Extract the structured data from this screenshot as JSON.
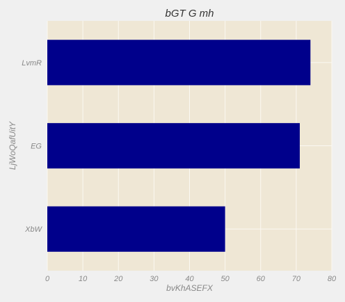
{
  "chart_data": {
    "type": "bar",
    "orientation": "horizontal",
    "title": "bGT  G mh",
    "xlabel": "bvKhASEFX",
    "ylabel": "LjWoQafUitY",
    "categories": [
      "LvmR",
      "EG",
      "XbW"
    ],
    "values": [
      74,
      71,
      50
    ],
    "xlim": [
      0,
      80
    ],
    "xticks": [
      0,
      10,
      20,
      30,
      40,
      50,
      60,
      70,
      80
    ],
    "grid": true,
    "legend": "none",
    "colors": {
      "bar": "#00008b",
      "plot_background": "#efe7d5",
      "figure_background": "#f0f0f0",
      "grid": "#fbf8f2"
    }
  }
}
